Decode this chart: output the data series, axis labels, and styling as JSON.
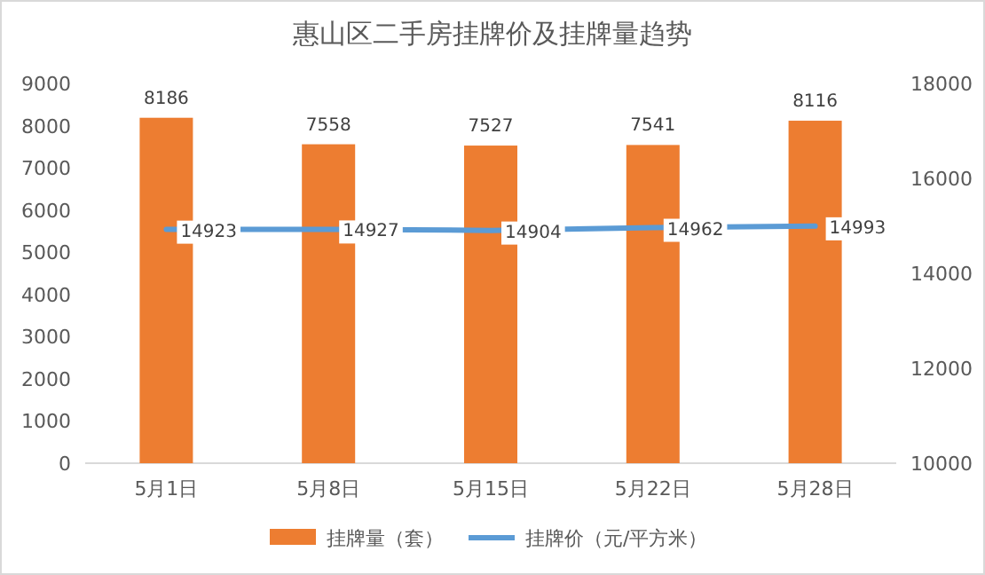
{
  "chart_data": {
    "type": "bar",
    "title": "惠山区二手房挂牌价及挂牌量趋势",
    "categories": [
      "5月1日",
      "5月8日",
      "5月15日",
      "5月22日",
      "5月28日"
    ],
    "series": [
      {
        "name": "挂牌量（套）",
        "color": "#ed7d31",
        "values": [
          8186,
          7558,
          7527,
          7541,
          8116
        ]
      },
      {
        "name": "挂牌价（元/平方米）",
        "type": "line",
        "axis": "y2",
        "color": "#5b9bd5",
        "values": [
          14923,
          14927,
          14904,
          14962,
          14993
        ]
      }
    ],
    "ylim": [
      0,
      9000
    ],
    "yticks": [
      0,
      1000,
      2000,
      3000,
      4000,
      5000,
      6000,
      7000,
      8000,
      9000
    ],
    "y2lim": [
      10000,
      18000
    ],
    "y2ticks": [
      10000,
      12000,
      14000,
      16000,
      18000
    ],
    "data_labels": true,
    "legend": "bottom",
    "grid": false,
    "marker": "none",
    "line_style": "solid"
  }
}
